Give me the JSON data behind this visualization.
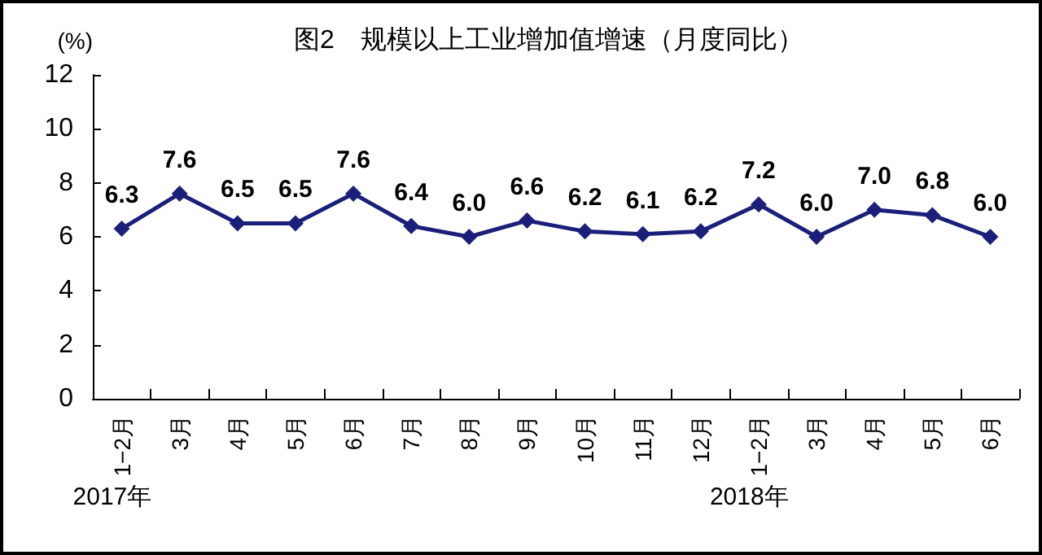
{
  "chart_data": {
    "type": "line",
    "title": "图2　规模以上工业增加值增速（月度同比）",
    "ylabel": "(%)",
    "categories": [
      "1−2月",
      "3月",
      "4月",
      "5月",
      "6月",
      "7月",
      "8月",
      "9月",
      "10月",
      "11月",
      "12月",
      "1−2月",
      "3月",
      "4月",
      "5月",
      "6月"
    ],
    "series": [
      {
        "color": "#1c1f7a",
        "values": [
          6.3,
          7.6,
          6.5,
          6.5,
          7.6,
          6.4,
          6.0,
          6.6,
          6.2,
          6.1,
          6.2,
          7.2,
          6.0,
          7.0,
          6.8,
          6.0
        ],
        "value_labels": [
          "6.3",
          "7.6",
          "6.5",
          "6.5",
          "7.6",
          "6.4",
          "6.0",
          "6.6",
          "6.2",
          "6.1",
          "6.2",
          "7.2",
          "6.0",
          "7.0",
          "6.8",
          "6.0"
        ]
      }
    ],
    "ylim": [
      0,
      12
    ],
    "yticks": [
      0,
      2,
      4,
      6,
      8,
      10,
      12
    ],
    "grid": false,
    "marker": "diamond",
    "line_style": "solid",
    "annotations": [
      "2017年",
      "2018年"
    ]
  }
}
